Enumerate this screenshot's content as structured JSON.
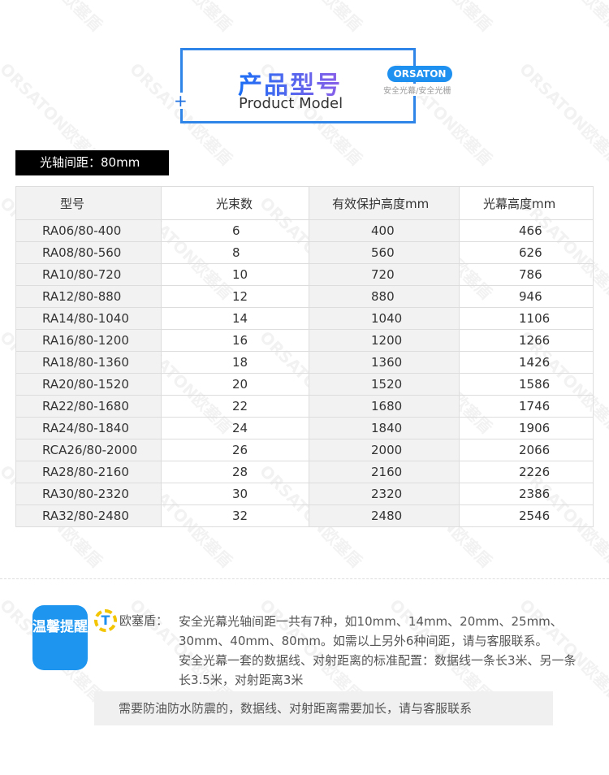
{
  "header": {
    "title_cn": "产品型号",
    "title_en": "Product Model",
    "brand_badge": "ORSATON",
    "brand_sub": "安全光幕/安全光栅"
  },
  "watermark": "ORSATON欧塞盾",
  "spacing_label": "光轴间距：80mm",
  "table": {
    "columns": [
      "型号",
      "光束数",
      "有效保护高度mm",
      "光幕高度mm"
    ],
    "rows": [
      [
        "RA06/80-400",
        "6",
        "400",
        "466"
      ],
      [
        "RA08/80-560",
        "8",
        "560",
        "626"
      ],
      [
        "RA10/80-720",
        "10",
        "720",
        "786"
      ],
      [
        "RA12/80-880",
        "12",
        "880",
        "946"
      ],
      [
        "RA14/80-1040",
        "14",
        "1040",
        "1106"
      ],
      [
        "RA16/80-1200",
        "16",
        "1200",
        "1266"
      ],
      [
        "RA18/80-1360",
        "18",
        "1360",
        "1426"
      ],
      [
        "RA20/80-1520",
        "20",
        "1520",
        "1586"
      ],
      [
        "RA22/80-1680",
        "22",
        "1680",
        "1746"
      ],
      [
        "RA24/80-1840",
        "24",
        "1840",
        "1906"
      ],
      [
        "RCA26/80-2000",
        "26",
        "2000",
        "2066"
      ],
      [
        "RA28/80-2160",
        "28",
        "2160",
        "2226"
      ],
      [
        "RA30/80-2320",
        "30",
        "2320",
        "2386"
      ],
      [
        "RA32/80-2480",
        "32",
        "2480",
        "2546"
      ]
    ]
  },
  "tips": {
    "badge": "温馨提醒",
    "logo_letter": "T",
    "brand": "欧塞盾：",
    "line1": "安全光幕光轴间距一共有7种，如10mm、14mm、20mm、25mm、30mm、40mm、80mm。如需以上另外6种间距，请与客服联系。",
    "line2": "安全光幕一套的数据线、对射距离的标准配置：数据线一条长3米、另一条长3.5米，对射距离3米",
    "bar": "需要防油防水防震的，数据线、对射距离需要加长，请与客服联系"
  },
  "colors": {
    "accent": "#1e96f0",
    "frame": "#2f86e8"
  }
}
